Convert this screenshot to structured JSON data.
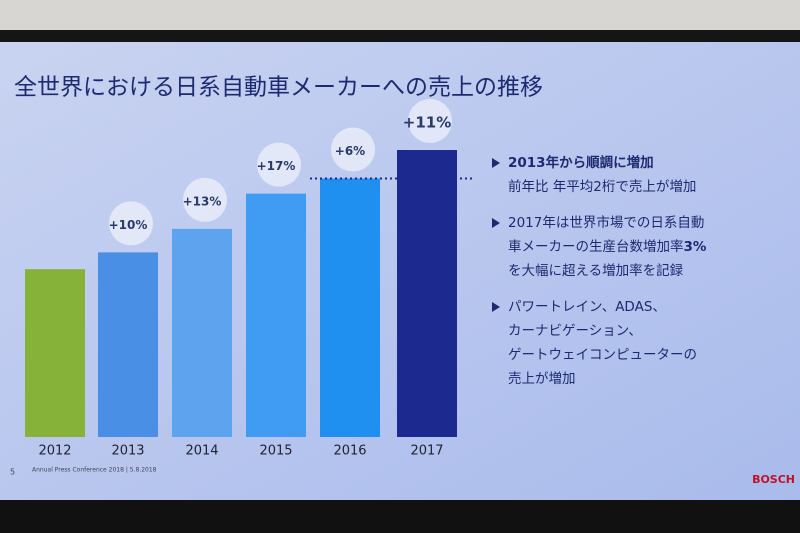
{
  "chart_data": {
    "type": "bar",
    "title": "全世界における日系自動車メーカーへの売上の推移",
    "categories": [
      "2012",
      "2013",
      "2014",
      "2015",
      "2016",
      "2017"
    ],
    "values": [
      100,
      110,
      124,
      145,
      154,
      171
    ],
    "colors": [
      "#86b23a",
      "#4a8fe6",
      "#5ea3ee",
      "#3f9cf2",
      "#1f8ff0",
      "#1c2a8f"
    ],
    "growth_labels": [
      null,
      "+10%",
      "+13%",
      "+17%",
      "+6%",
      "+11%"
    ],
    "bullets": [
      [
        [
          {
            "text": "2013年から順調に増加",
            "bold": true
          }
        ],
        [
          {
            "text": "前年比 年平均2桁で売上が増加",
            "bold": false
          }
        ]
      ],
      [
        [
          {
            "text": "2017年は世界市場での日系自動",
            "bold": false
          }
        ],
        [
          {
            "text": "車メーカーの生産台数増加率",
            "bold": false
          },
          {
            "text": "3%",
            "bold": true
          }
        ],
        [
          {
            "text": "を大幅に超える増加率を記録",
            "bold": false
          }
        ]
      ],
      [
        [
          {
            "text": "パワートレイン、ADAS、",
            "bold": false
          }
        ],
        [
          {
            "text": "カーナビゲーション、",
            "bold": false
          }
        ],
        [
          {
            "text": "ゲートウェイコンピューターの",
            "bold": false
          }
        ],
        [
          {
            "text": "売上が増加",
            "bold": false
          }
        ]
      ]
    ],
    "footer": "Annual Press Conference 2018 | 5.8.2018",
    "page_number": "5",
    "brand": "BOSCH"
  }
}
